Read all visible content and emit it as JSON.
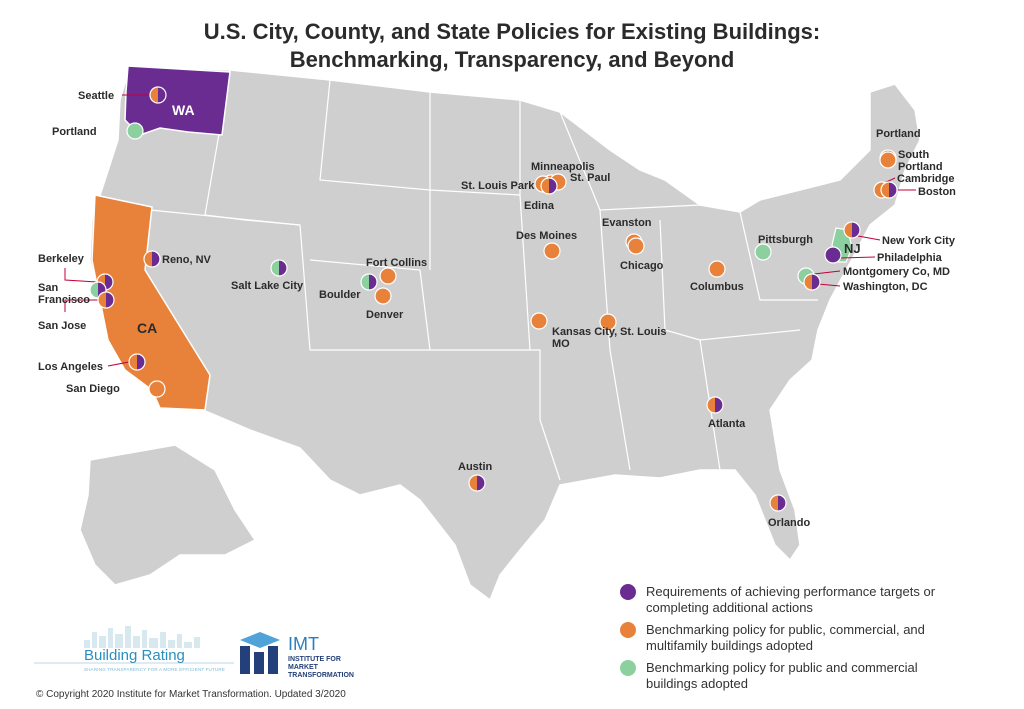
{
  "title": {
    "line1": "U.S. City, County, and State Policies for Existing Buildings:",
    "line2": "Benchmarking, Transparency, and Beyond"
  },
  "colors": {
    "purple": "#6a2c91",
    "orange": "#e8823a",
    "green": "#8cd0a0",
    "land": "#cfcfcf",
    "border": "#ffffff"
  },
  "states": [
    {
      "label": "WA",
      "fill": "purple"
    },
    {
      "label": "CA",
      "fill": "orange"
    },
    {
      "label": "NJ",
      "fill": "green"
    }
  ],
  "cities": [
    {
      "label": "Seattle",
      "colors": [
        "orange",
        "purple"
      ]
    },
    {
      "label": "Portland",
      "colors": [
        "green"
      ]
    },
    {
      "label": "Berkeley",
      "colors": [
        "orange",
        "purple"
      ]
    },
    {
      "label": "San Francisco",
      "colors": [
        "green",
        "purple"
      ]
    },
    {
      "label": "San Jose",
      "colors": [
        "orange",
        "purple"
      ]
    },
    {
      "label": "Los Angeles",
      "colors": [
        "orange",
        "purple"
      ]
    },
    {
      "label": "San Diego",
      "colors": [
        "orange"
      ]
    },
    {
      "label": "Reno, NV",
      "colors": [
        "orange",
        "purple"
      ]
    },
    {
      "label": "Salt Lake City",
      "colors": [
        "green",
        "purple"
      ]
    },
    {
      "label": "Fort Collins",
      "colors": [
        "orange"
      ]
    },
    {
      "label": "Boulder",
      "colors": [
        "green",
        "purple"
      ]
    },
    {
      "label": "Denver",
      "colors": [
        "orange"
      ]
    },
    {
      "label": "Minneapolis",
      "colors": [
        "orange"
      ]
    },
    {
      "label": "St. Paul",
      "colors": [
        "orange"
      ]
    },
    {
      "label": "St. Louis Park",
      "colors": [
        "orange"
      ]
    },
    {
      "label": "Edina",
      "colors": [
        "orange",
        "purple"
      ]
    },
    {
      "label": "Des Moines",
      "colors": [
        "orange"
      ]
    },
    {
      "label": "Evanston",
      "colors": [
        "orange"
      ]
    },
    {
      "label": "Chicago",
      "colors": [
        "orange"
      ]
    },
    {
      "label": "Kansas City, MO",
      "colors": [
        "orange"
      ]
    },
    {
      "label": "St. Louis",
      "colors": [
        "orange"
      ]
    },
    {
      "label": "Columbus",
      "colors": [
        "orange"
      ]
    },
    {
      "label": "Pittsburgh",
      "colors": [
        "green"
      ]
    },
    {
      "label": "Austin",
      "colors": [
        "orange",
        "purple"
      ]
    },
    {
      "label": "Atlanta",
      "colors": [
        "orange",
        "purple"
      ]
    },
    {
      "label": "Orlando",
      "colors": [
        "orange",
        "purple"
      ]
    },
    {
      "label": "Portland",
      "colors": [
        "orange"
      ]
    },
    {
      "label": "South Portland",
      "colors": [
        "orange"
      ]
    },
    {
      "label": "Cambridge",
      "colors": [
        "orange"
      ]
    },
    {
      "label": "Boston",
      "colors": [
        "orange",
        "purple"
      ]
    },
    {
      "label": "New York City",
      "colors": [
        "orange",
        "purple"
      ]
    },
    {
      "label": "Philadelphia",
      "colors": [
        "purple"
      ]
    },
    {
      "label": "Montgomery Co, MD",
      "colors": [
        "green"
      ]
    },
    {
      "label": "Washington, DC",
      "colors": [
        "orange",
        "purple"
      ]
    }
  ],
  "legend": [
    {
      "color": "purple",
      "text": "Requirements of achieving performance targets or completing additional actions"
    },
    {
      "color": "orange",
      "text": "Benchmarking policy for public, commercial, and multifamily buildings adopted"
    },
    {
      "color": "green",
      "text": "Benchmarking policy for public and commercial buildings adopted"
    }
  ],
  "logos": {
    "building_rating": {
      "name": "Building Rating",
      "tagline": "SHARING TRANSPARENCY FOR A MORE EFFICIENT FUTURE"
    },
    "imt": {
      "name": "IMT",
      "subtitle": "INSTITUTE FOR MARKET TRANSFORMATION"
    }
  },
  "copyright": "© Copyright 2020 Institute for Market Transformation. Updated 3/2020"
}
